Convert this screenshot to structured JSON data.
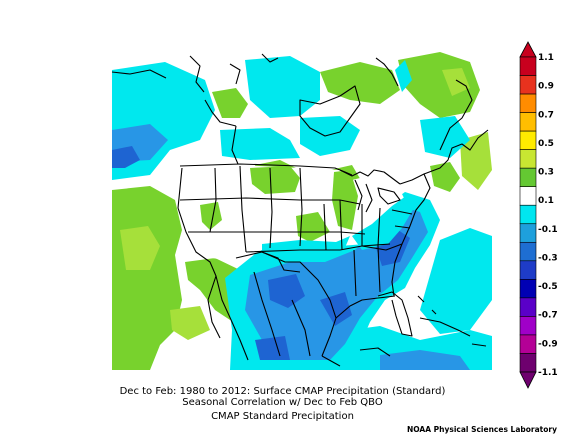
{
  "caption": {
    "line1": "Dec to Feb: 1980 to 2012: Surface CMAP Precipitation (Standard)",
    "line2": "Seasonal Correlation w/ Dec to Feb QBO",
    "line3": "CMAP Standard Precipitation"
  },
  "credit": "NOAA Physical Sciences Laboratory",
  "colorbar": {
    "labels": [
      "1.1",
      "0.9",
      "0.7",
      "0.5",
      "0.3",
      "0.1",
      "-0.1",
      "-0.3",
      "-0.5",
      "-0.7",
      "-0.9",
      "-1.1"
    ],
    "colors": [
      "#c8001e",
      "#e8321e",
      "#ff8c00",
      "#ffbe00",
      "#ffeb00",
      "#c8e632",
      "#64c832",
      "#ffffff",
      "#00e6f0",
      "#1ea0dc",
      "#1e6ed2",
      "#1e3cc8",
      "#0000b4",
      "#5a00c8",
      "#a000c8",
      "#b40096",
      "#6e006e"
    ]
  },
  "legend_colors": {
    "land_white": "#ffffff",
    "green": "#78d22d",
    "light_green": "#a6e03a",
    "cyan": "#00e8ee",
    "mid_blue": "#2896e6",
    "dark_blue": "#1e64d2"
  }
}
